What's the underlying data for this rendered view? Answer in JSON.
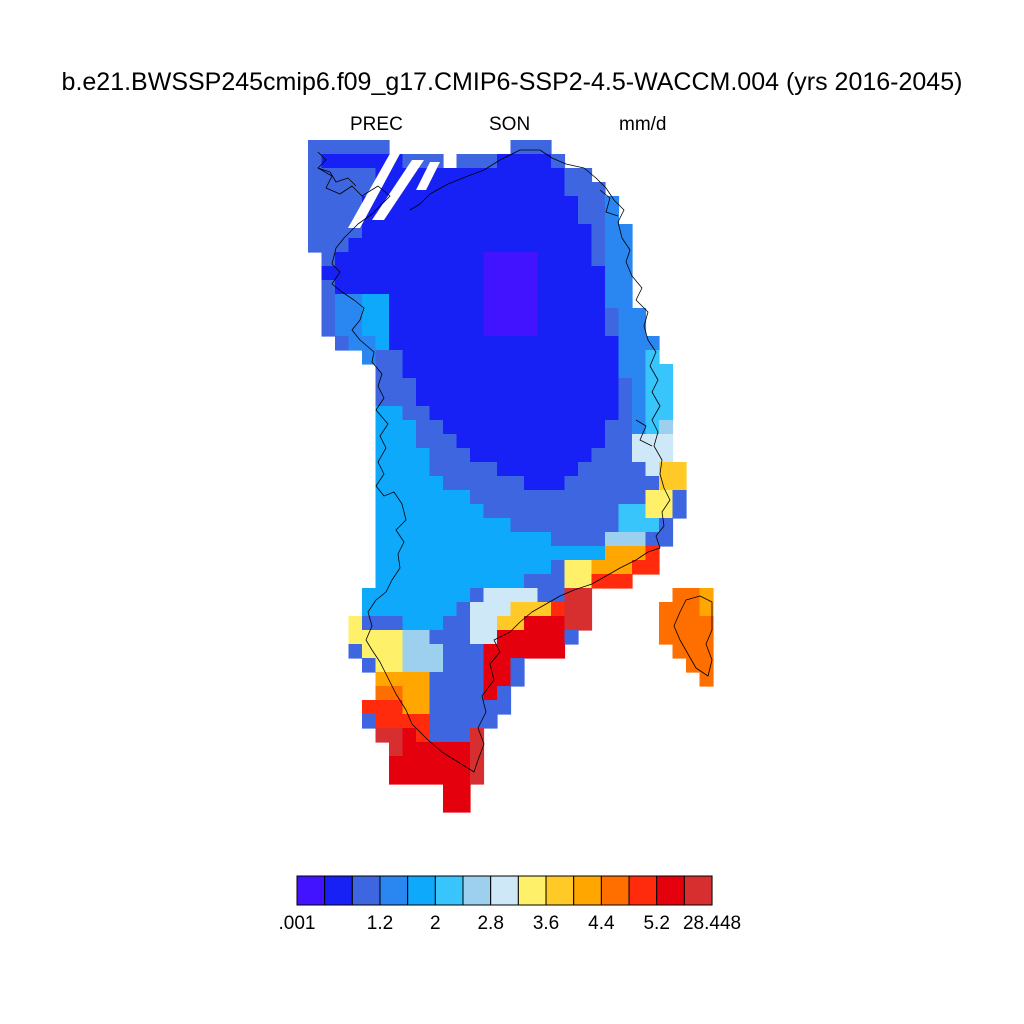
{
  "title": "b.e21.BWSSP245cmip6.f09_g17.CMIP6-SSP2-4.5-WACCM.004 (yrs 2016-2045)",
  "subtitle": {
    "variable": "PREC",
    "season": "SON",
    "units": "mm/d"
  },
  "colorbar": {
    "colors": [
      "#4113ff",
      "#1721f6",
      "#3e66e1",
      "#2a86f1",
      "#0fa9fc",
      "#38c5fb",
      "#9dcfee",
      "#cfe8f8",
      "#fff06a",
      "#ffca28",
      "#ffa600",
      "#ff6f00",
      "#ff2b0c",
      "#e5000d",
      "#d72f30"
    ],
    "tick_labels": [
      ".001",
      "1.2",
      "2",
      "2.8",
      "3.6",
      "4.4",
      "5.2",
      "28.448"
    ],
    "tick_boundary_index": [
      0,
      3,
      5,
      7,
      9,
      11,
      13,
      15
    ]
  },
  "chart_data": {
    "type": "heatmap",
    "title": "b.e21.BWSSP245cmip6.f09_g17.CMIP6-SSP2-4.5-WACCM.004 (yrs 2016-2045)",
    "variable": "PREC",
    "season": "SON",
    "units": "mm/d",
    "region_shown": "Greenland",
    "colorbar_labels": [
      ".001",
      "1.2",
      "2",
      "2.8",
      "3.6",
      "4.4",
      "5.2",
      "28.448"
    ],
    "zones": [
      {
        "region": "north-central interior",
        "band": "< 1.2"
      },
      {
        "region": "northwest and northeast margins",
        "band": "1.2 - 2"
      },
      {
        "region": "west and southwest interior",
        "band": "2 - 2.8"
      },
      {
        "region": "central-east coast",
        "band": "2.8 - 3.6"
      },
      {
        "region": "southeast coast",
        "band": "4.4 - 28.448"
      },
      {
        "region": "southern tip",
        "band": "5.2 - 28.448"
      },
      {
        "region": "Iceland (partial)",
        "band": "3.6 - 5.2"
      }
    ]
  }
}
